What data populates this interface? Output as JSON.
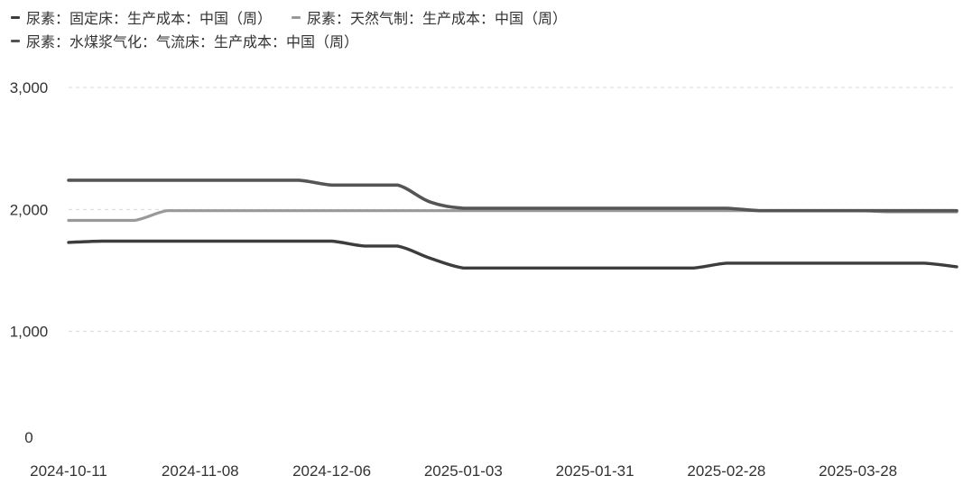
{
  "chart_data": {
    "type": "line",
    "title": "",
    "xlabel": "",
    "ylabel": "",
    "ylim": [
      0,
      3000
    ],
    "yticks": [
      0,
      1000,
      2000,
      3000
    ],
    "ytick_labels": [
      "0",
      "1,000",
      "2,000",
      "3,000"
    ],
    "xticks": [
      "2024-10-11",
      "2024-11-08",
      "2024-12-06",
      "2025-01-03",
      "2025-01-31",
      "2025-02-28",
      "2025-03-28"
    ],
    "grid": "horizontal dashed",
    "legend_position": "top-left",
    "x": [
      "2024-10-11",
      "2024-10-18",
      "2024-10-25",
      "2024-11-01",
      "2024-11-08",
      "2024-11-15",
      "2024-11-22",
      "2024-11-29",
      "2024-12-06",
      "2024-12-13",
      "2024-12-20",
      "2024-12-27",
      "2025-01-03",
      "2025-01-10",
      "2025-01-17",
      "2025-01-24",
      "2025-01-31",
      "2025-02-07",
      "2025-02-14",
      "2025-02-21",
      "2025-02-28",
      "2025-03-07",
      "2025-03-14",
      "2025-03-21",
      "2025-03-28",
      "2025-04-04",
      "2025-04-11",
      "2025-04-18"
    ],
    "series": [
      {
        "name": "尿素：固定床：生产成本：中国（周）",
        "color": "#3d3d3d",
        "values": [
          1730,
          1740,
          1740,
          1740,
          1740,
          1740,
          1740,
          1740,
          1740,
          1700,
          1700,
          1600,
          1520,
          1520,
          1520,
          1520,
          1520,
          1520,
          1520,
          1520,
          1560,
          1560,
          1560,
          1560,
          1560,
          1560,
          1560,
          1530
        ]
      },
      {
        "name": "尿素：天然气制：生产成本：中国（周）",
        "color": "#999999",
        "values": [
          1910,
          1910,
          1910,
          1990,
          1990,
          1990,
          1990,
          1990,
          1990,
          1990,
          1990,
          1990,
          1990,
          1990,
          1990,
          1990,
          1990,
          1990,
          1990,
          1990,
          1990,
          1990,
          1990,
          1990,
          1990,
          1980,
          1980,
          1980
        ]
      },
      {
        "name": "尿素：水煤浆气化：气流床：生产成本：中国（周）",
        "color": "#555555",
        "values": [
          2240,
          2240,
          2240,
          2240,
          2240,
          2240,
          2240,
          2240,
          2200,
          2200,
          2200,
          2060,
          2010,
          2010,
          2010,
          2010,
          2010,
          2010,
          2010,
          2010,
          2010,
          1990,
          1990,
          1990,
          1990,
          1990,
          1990,
          1990
        ]
      }
    ]
  }
}
